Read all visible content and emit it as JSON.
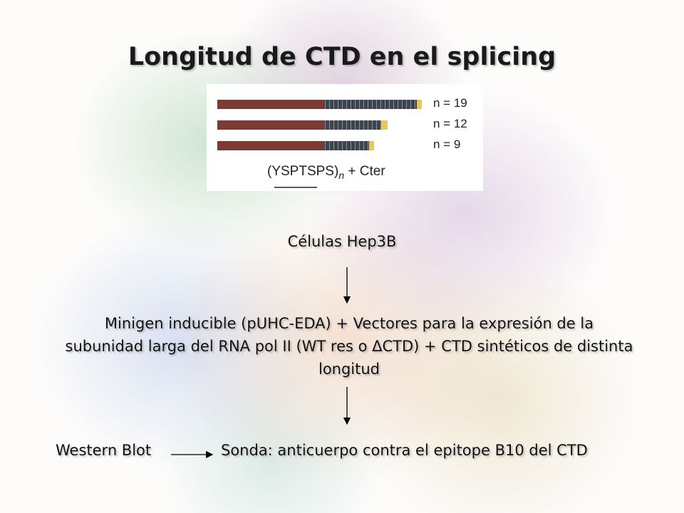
{
  "title": "Longitud de CTD en el splicing",
  "figure": {
    "rows": [
      {
        "label": "n = 19"
      },
      {
        "label": "n = 12"
      },
      {
        "label": "n = 9"
      }
    ],
    "caption": {
      "repeat": "(YSPTSPS)",
      "subscript": "n",
      "suffix": "+ Cter"
    }
  },
  "steps": {
    "cells": "Células Hep3B",
    "construct": "Minigen inducible (pUHC-EDA) + Vectores para la expresión de la subunidad larga del RNA pol II (WT res o ΔCTD) + CTD sintéticos de distinta longitud",
    "method": "Western Blot",
    "probe": "Sonda: anticuerpo contra el epitope B10 del CTD"
  }
}
